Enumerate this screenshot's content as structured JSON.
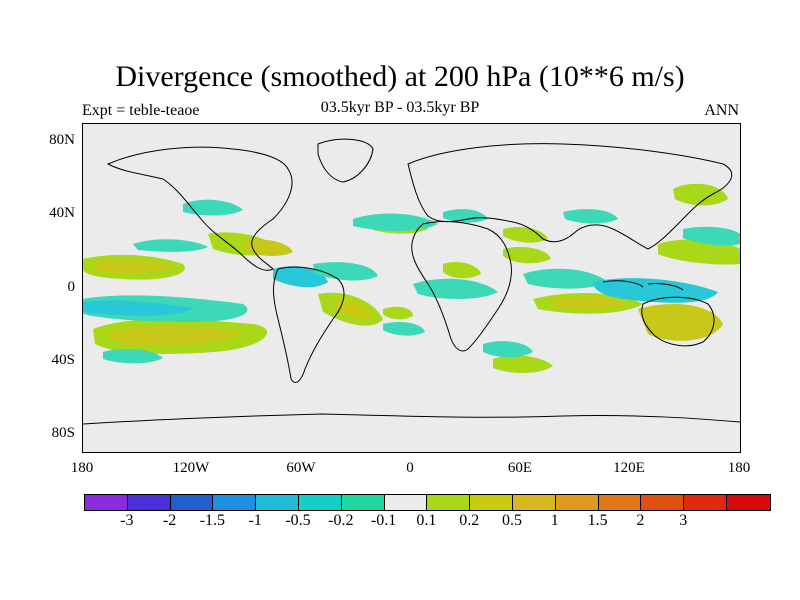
{
  "title": "Divergence (smoothed) at 200 hPa (10**6 m/s)",
  "subtitle_left": "Expt = teble-teaoe",
  "subtitle_center": "03.5kyr BP - 03.5kyr BP",
  "subtitle_right": "ANN",
  "lat_labels": [
    "80N",
    "40N",
    "0",
    "40S",
    "80S"
  ],
  "lon_labels": [
    "180",
    "120W",
    "60W",
    "0",
    "60E",
    "120E",
    "180"
  ],
  "colorbar": {
    "colors": [
      "#8a2be2",
      "#4b2fd8",
      "#1f5fd0",
      "#1e90e0",
      "#1ebcd8",
      "#10d0c8",
      "#20d8a0",
      "#ebebeb",
      "#a8d818",
      "#c8cc10",
      "#d8b820",
      "#e09a20",
      "#e07818",
      "#e05010",
      "#e02a0a",
      "#d80a0a"
    ],
    "labels": [
      "-3",
      "-2",
      "-1.5",
      "-1",
      "-0.5",
      "-0.2",
      "-0.1",
      "0.1",
      "0.2",
      "0.5",
      "1",
      "1.5",
      "2",
      "3"
    ]
  },
  "legend_colors": {
    "neg_light": "#3cd8b8",
    "neg_mid": "#28c8d8",
    "neg_dark": "#1e90e0",
    "pos_light": "#a8d818",
    "pos_mid": "#c8c818",
    "pos_dark": "#d8b020",
    "background": "#ebebeb"
  }
}
